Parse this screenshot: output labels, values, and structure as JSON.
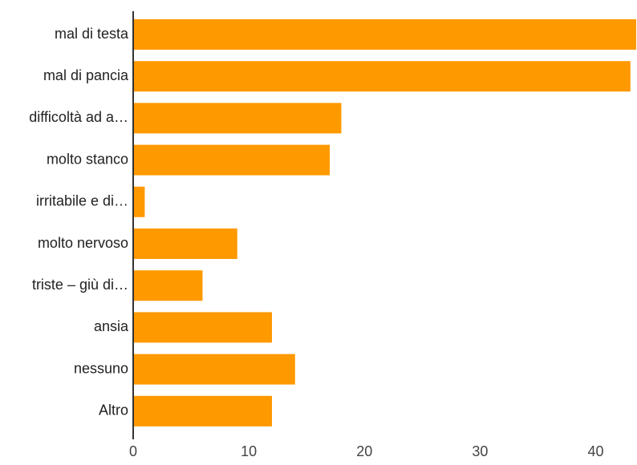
{
  "chart_data": {
    "type": "bar",
    "orientation": "horizontal",
    "categories": [
      "mal di testa",
      "mal di pancia",
      "difficoltà ad a…",
      "molto stanco",
      "irritabile e di…",
      "molto nervoso",
      "triste – giù di…",
      "ansia",
      "nessuno",
      "Altro"
    ],
    "values": [
      43.5,
      43,
      18,
      17,
      1,
      9,
      6,
      12,
      14,
      12
    ],
    "xlim": [
      0,
      43.5
    ],
    "xticks": [
      "0",
      "10",
      "20",
      "30",
      "40"
    ],
    "bar_color": "#ff9900",
    "axis_color": "#333333",
    "grid": false,
    "title": "",
    "xlabel": "",
    "ylabel": ""
  }
}
